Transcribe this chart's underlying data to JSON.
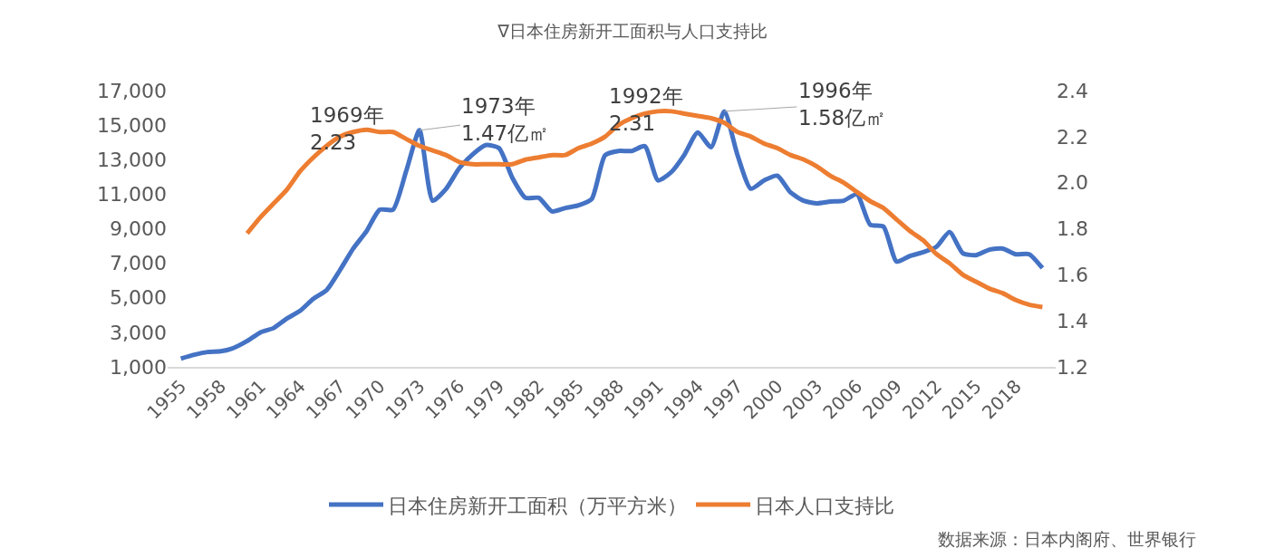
{
  "chart_data": {
    "type": "line",
    "title": "∇日本住房新开工面积与人口支持比",
    "x": [
      1955,
      1956,
      1957,
      1958,
      1959,
      1960,
      1961,
      1962,
      1963,
      1964,
      1965,
      1966,
      1967,
      1968,
      1969,
      1970,
      1971,
      1972,
      1973,
      1974,
      1975,
      1976,
      1977,
      1978,
      1979,
      1980,
      1981,
      1982,
      1983,
      1984,
      1985,
      1986,
      1987,
      1988,
      1989,
      1990,
      1991,
      1992,
      1993,
      1994,
      1995,
      1996,
      1997,
      1998,
      1999,
      2000,
      2001,
      2002,
      2003,
      2004,
      2005,
      2006,
      2007,
      2008,
      2009,
      2010,
      2011,
      2012,
      2013,
      2014,
      2015,
      2016,
      2017,
      2018,
      2019,
      2020
    ],
    "series": [
      {
        "name": "日本住房新开工面积（万平方米）",
        "color": "#4472c4",
        "axis": "y",
        "values": [
          1480,
          1700,
          1860,
          1900,
          2100,
          2500,
          3000,
          3250,
          3800,
          4250,
          4950,
          5450,
          6600,
          7850,
          8850,
          10100,
          10100,
          12340,
          14700,
          10620,
          11300,
          12500,
          13300,
          13840,
          13670,
          11960,
          10790,
          10790,
          10000,
          10200,
          10360,
          10730,
          13250,
          13500,
          13500,
          13780,
          11800,
          12280,
          13300,
          14580,
          13720,
          15800,
          13250,
          11320,
          11800,
          12070,
          11100,
          10620,
          10470,
          10570,
          10620,
          11000,
          9240,
          9130,
          7100,
          7420,
          7640,
          7950,
          8810,
          7580,
          7470,
          7790,
          7850,
          7520,
          7520,
          6720
        ]
      },
      {
        "name": "日本人口支持比",
        "color": "#ed7d31",
        "axis": "y2",
        "values": [
          null,
          null,
          null,
          null,
          null,
          1.78,
          1.85,
          1.91,
          1.97,
          2.05,
          2.11,
          2.16,
          2.2,
          2.22,
          2.23,
          2.22,
          2.22,
          2.19,
          2.16,
          2.14,
          2.12,
          2.09,
          2.08,
          2.08,
          2.08,
          2.08,
          2.1,
          2.11,
          2.12,
          2.12,
          2.15,
          2.17,
          2.2,
          2.25,
          2.28,
          2.3,
          2.31,
          2.31,
          2.3,
          2.29,
          2.28,
          2.26,
          2.22,
          2.2,
          2.17,
          2.15,
          2.12,
          2.1,
          2.07,
          2.03,
          2.0,
          1.96,
          1.92,
          1.89,
          1.84,
          1.79,
          1.75,
          1.69,
          1.65,
          1.6,
          1.57,
          1.54,
          1.52,
          1.49,
          1.47,
          1.46
        ]
      }
    ],
    "xlim": [
      1954,
      2021
    ],
    "xticks": [
      1955,
      1958,
      1961,
      1964,
      1967,
      1970,
      1973,
      1976,
      1979,
      1982,
      1985,
      1988,
      1991,
      1994,
      1997,
      2000,
      2003,
      2006,
      2009,
      2012,
      2015,
      2018
    ],
    "ylim": [
      1000,
      17000
    ],
    "yticks": [
      {
        "value": 1000,
        "label": "1,000"
      },
      {
        "value": 3000,
        "label": "3,000"
      },
      {
        "value": 5000,
        "label": "5,000"
      },
      {
        "value": 7000,
        "label": "7,000"
      },
      {
        "value": 9000,
        "label": "9,000"
      },
      {
        "value": 11000,
        "label": "11,000"
      },
      {
        "value": 13000,
        "label": "13,000"
      },
      {
        "value": 15000,
        "label": "15,000"
      },
      {
        "value": 17000,
        "label": "17,000"
      }
    ],
    "y2lim": [
      1.2,
      2.4
    ],
    "y2ticks": [
      1.2,
      1.4,
      1.6,
      1.8,
      {
        "value": 2.0,
        "label": "2.0"
      },
      2.2,
      2.4
    ],
    "annotations": [
      "1969年\n2.23",
      {
        "text": "1973年\n1.47亿㎡",
        "x": 1973,
        "y": 14700
      },
      "1992年\n2.31",
      {
        "text": "1996年\n1.58亿㎡",
        "x": 1996,
        "y": 15800
      },
      "数据来源：日本内阁府、世界银行"
    ],
    "legend": "bottom",
    "marker": "none",
    "line_style": "solid"
  }
}
